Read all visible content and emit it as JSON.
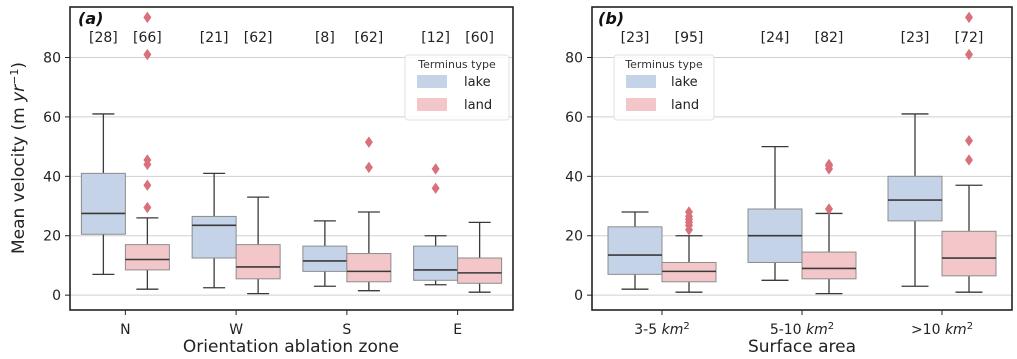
{
  "figure": {
    "ylabel": "Mean velocity (m yr⁻¹)",
    "legend_title": "Terminus type",
    "legend_items": [
      "lake",
      "land"
    ],
    "colors": {
      "lake": "#c5d3e8",
      "land": "#f3c7c9",
      "outlier": "#d9707a",
      "line": "#3a3a3a",
      "grid": "#d0d0d0"
    }
  },
  "chart_data": [
    {
      "type": "box",
      "panel_label": "(a)",
      "xlabel": "Orientation ablation zone",
      "categories": [
        "N",
        "W",
        "S",
        "E"
      ],
      "ylim": [
        -5,
        97
      ],
      "yticks": [
        0,
        20,
        40,
        60,
        80
      ],
      "grid": true,
      "legend": "top-right",
      "series": [
        {
          "name": "lake",
          "counts": [
            "[28]",
            "[21]",
            "[8]",
            "[12]"
          ],
          "boxes": [
            {
              "whislo": 7,
              "q1": 20.5,
              "median": 27.5,
              "q3": 41,
              "whishi": 61,
              "fliers": []
            },
            {
              "whislo": 2.5,
              "q1": 12.5,
              "median": 23.5,
              "q3": 26.5,
              "whishi": 41,
              "fliers": []
            },
            {
              "whislo": 3,
              "q1": 8,
              "median": 11.5,
              "q3": 16.5,
              "whishi": 25,
              "fliers": []
            },
            {
              "whislo": 3.5,
              "q1": 5,
              "median": 8.5,
              "q3": 16.5,
              "whishi": 20,
              "fliers": [
                36,
                42.5
              ]
            }
          ]
        },
        {
          "name": "land",
          "counts": [
            "[66]",
            "[62]",
            "[62]",
            "[60]"
          ],
          "boxes": [
            {
              "whislo": 2,
              "q1": 8.5,
              "median": 12,
              "q3": 17,
              "whishi": 26,
              "fliers": [
                29.5,
                37,
                44,
                45.5,
                81,
                93.5
              ]
            },
            {
              "whislo": 0.5,
              "q1": 5.5,
              "median": 9.5,
              "q3": 17,
              "whishi": 33,
              "fliers": []
            },
            {
              "whislo": 1.5,
              "q1": 4.5,
              "median": 8,
              "q3": 14,
              "whishi": 28,
              "fliers": [
                43,
                51.5
              ]
            },
            {
              "whislo": 1,
              "q1": 4,
              "median": 7.5,
              "q3": 12.5,
              "whishi": 24.5,
              "fliers": []
            }
          ]
        }
      ]
    },
    {
      "type": "box",
      "panel_label": "(b)",
      "xlabel": "Surface area",
      "categories": [
        "3-5 km²",
        "5-10 km²",
        ">10 km²"
      ],
      "ylim": [
        -5,
        97
      ],
      "yticks": [
        0,
        20,
        40,
        60,
        80
      ],
      "grid": true,
      "legend": "top-left",
      "series": [
        {
          "name": "lake",
          "counts": [
            "[23]",
            "[24]",
            "[23]"
          ],
          "boxes": [
            {
              "whislo": 2,
              "q1": 7,
              "median": 13.5,
              "q3": 23,
              "whishi": 28,
              "fliers": []
            },
            {
              "whislo": 5,
              "q1": 11,
              "median": 20,
              "q3": 29,
              "whishi": 50,
              "fliers": []
            },
            {
              "whislo": 3,
              "q1": 25,
              "median": 32,
              "q3": 40,
              "whishi": 61,
              "fliers": []
            }
          ]
        },
        {
          "name": "land",
          "counts": [
            "[95]",
            "[82]",
            "[72]"
          ],
          "boxes": [
            {
              "whislo": 1,
              "q1": 4.5,
              "median": 8,
              "q3": 11,
              "whishi": 20,
              "fliers": [
                22,
                23.5,
                24.5,
                25.5,
                26.5,
                28
              ]
            },
            {
              "whislo": 0.5,
              "q1": 5.5,
              "median": 9,
              "q3": 14.5,
              "whishi": 27.5,
              "fliers": [
                29,
                42.5,
                43.5,
                44
              ]
            },
            {
              "whislo": 1,
              "q1": 6.5,
              "median": 12.5,
              "q3": 21.5,
              "whishi": 37,
              "fliers": [
                45.5,
                52,
                81,
                93.5
              ]
            }
          ]
        }
      ]
    }
  ]
}
